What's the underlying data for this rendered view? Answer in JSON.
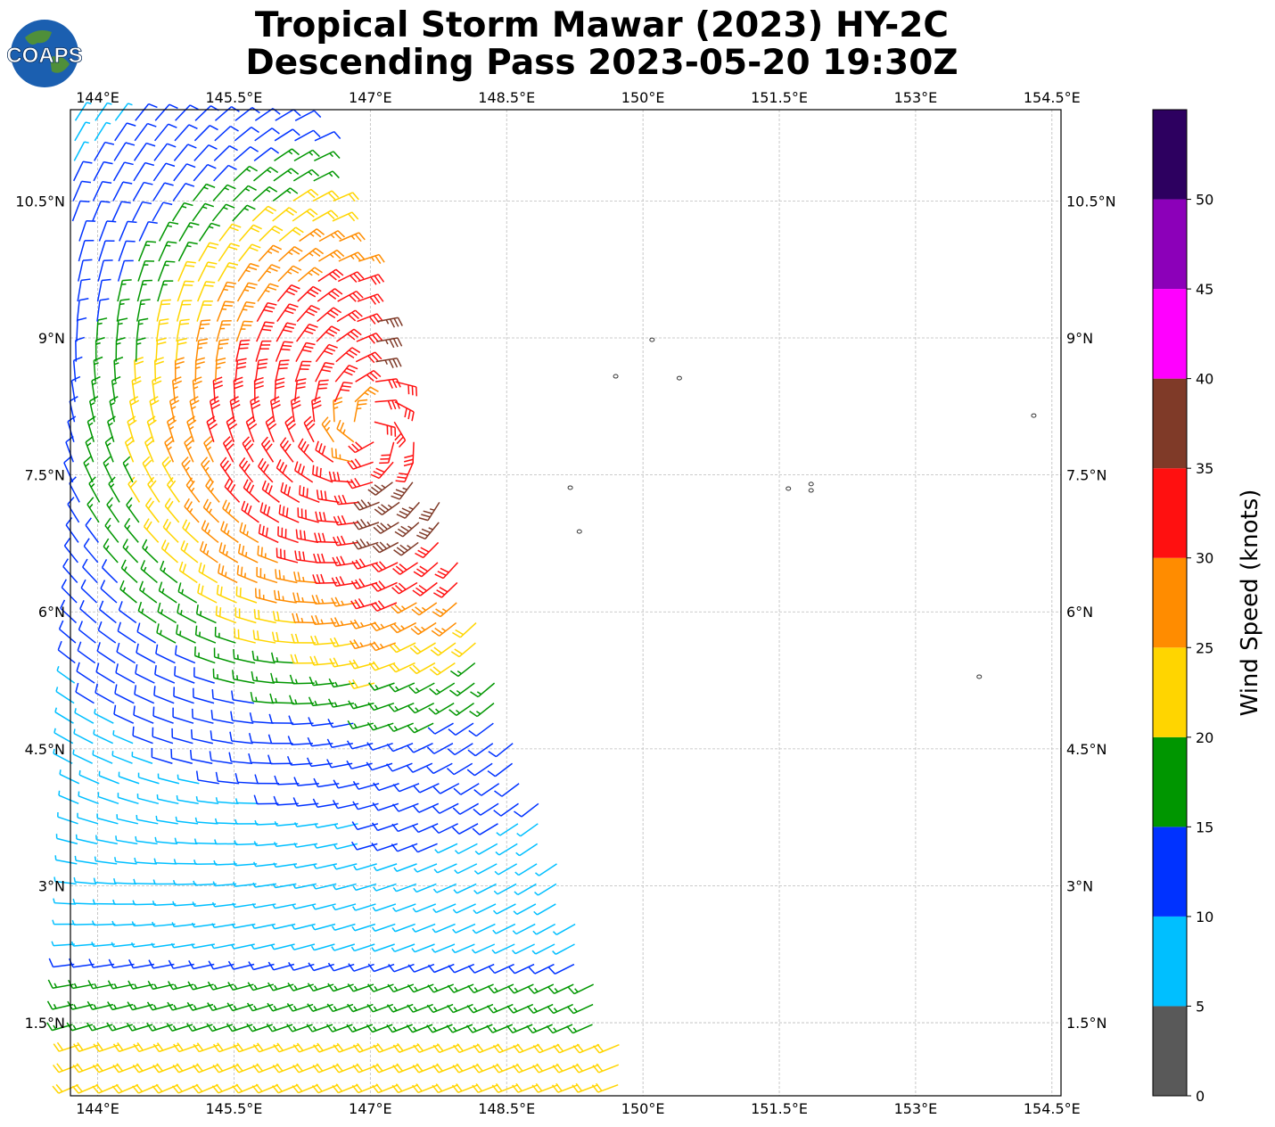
{
  "title": {
    "line1": "Tropical Storm Mawar (2023) HY-2C",
    "line2": "Descending Pass 2023-05-20 19:30Z"
  },
  "logo": {
    "text": "COAPS"
  },
  "colors": {
    "frame": "#000000",
    "grid": "#bbbbbb",
    "coast": "#333333"
  },
  "chart_data": {
    "type": "wind-barb-map",
    "xlim": [
      143.7,
      154.6
    ],
    "ylim": [
      0.7,
      11.5
    ],
    "x_ticks": [
      {
        "v": 144.0,
        "label": "144°E"
      },
      {
        "v": 145.5,
        "label": "145.5°E"
      },
      {
        "v": 147.0,
        "label": "147°E"
      },
      {
        "v": 148.5,
        "label": "148.5°E"
      },
      {
        "v": 150.0,
        "label": "150°E"
      },
      {
        "v": 151.5,
        "label": "151.5°E"
      },
      {
        "v": 153.0,
        "label": "153°E"
      },
      {
        "v": 154.5,
        "label": "154.5°E"
      }
    ],
    "y_ticks": [
      {
        "v": 1.5,
        "label": "1.5°N"
      },
      {
        "v": 3.0,
        "label": "3°N"
      },
      {
        "v": 4.5,
        "label": "4.5°N"
      },
      {
        "v": 6.0,
        "label": "6°N"
      },
      {
        "v": 7.5,
        "label": "7.5°N"
      },
      {
        "v": 9.0,
        "label": "9°N"
      },
      {
        "v": 10.5,
        "label": "10.5°N"
      }
    ],
    "grid": true,
    "swath_edge": [
      [
        146.3,
        11.5
      ],
      [
        149.9,
        0.7
      ]
    ],
    "storm_center": [
      147.0,
      8.0
    ],
    "islands": [
      [
        150.1,
        8.98
      ],
      [
        149.7,
        8.58
      ],
      [
        150.4,
        8.56
      ],
      [
        154.3,
        8.15
      ],
      [
        151.6,
        7.35
      ],
      [
        151.85,
        7.4
      ],
      [
        151.85,
        7.33
      ],
      [
        149.2,
        7.36
      ],
      [
        149.3,
        6.88
      ],
      [
        153.7,
        5.29
      ]
    ],
    "colorbar": {
      "label": "Wind Speed (knots)",
      "bounds": [
        0,
        5,
        10,
        15,
        20,
        25,
        30,
        35,
        40,
        45,
        50,
        55
      ],
      "tick_labels": [
        "0",
        "5",
        "10",
        "15",
        "20",
        "25",
        "30",
        "35",
        "40",
        "45",
        "50"
      ],
      "colors": [
        "#595959",
        "#00bfff",
        "#0032ff",
        "#009600",
        "#ffd500",
        "#ff8c00",
        "#ff1010",
        "#7f3a28",
        "#ff00ff",
        "#8c00b9",
        "#2d0060"
      ]
    }
  }
}
